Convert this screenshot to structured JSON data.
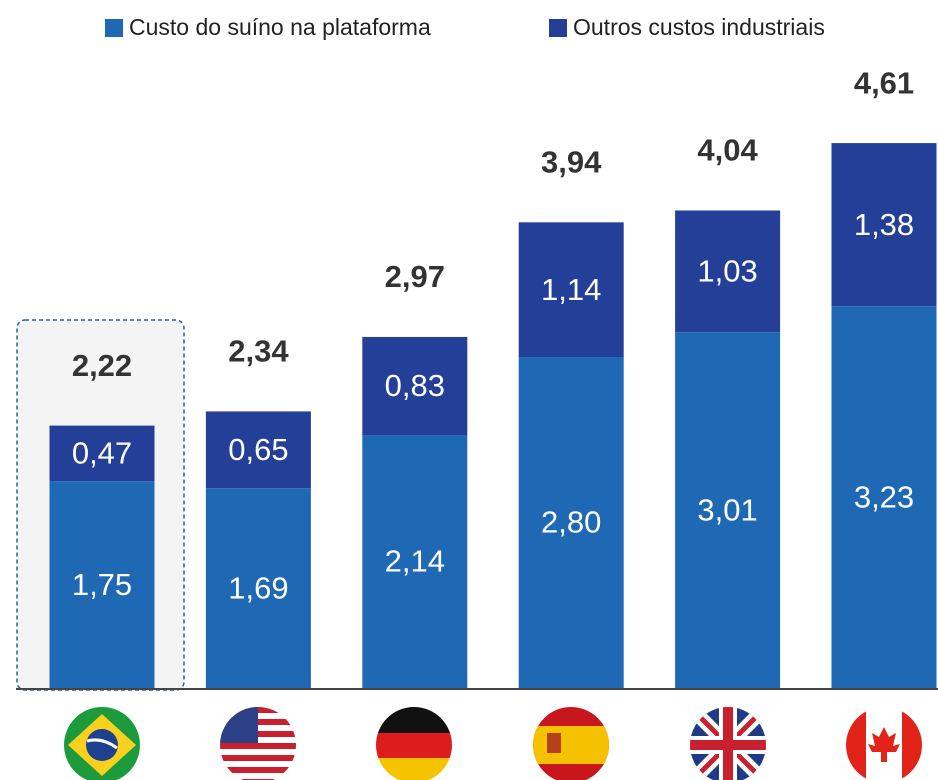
{
  "chart_data": {
    "type": "stacked_bar",
    "categories": [
      null,
      null,
      null,
      null,
      null,
      null
    ],
    "series": [
      {
        "name": "Custo do suíno na plataforma",
        "color": "#1f69b4",
        "values": [
          1.75,
          1.69,
          2.14,
          2.8,
          3.01,
          3.23
        ],
        "value_labels": [
          "1,75",
          "1,69",
          "2,14",
          "2,80",
          "3,01",
          "3,23"
        ]
      },
      {
        "name": "Outros custos industriais",
        "color": "#243f98",
        "values": [
          0.47,
          0.65,
          0.83,
          1.14,
          1.03,
          1.38
        ],
        "value_labels": [
          "0,47",
          "0,65",
          "0,83",
          "1,14",
          "1,03",
          "1,38"
        ]
      }
    ],
    "totals": [
      2.22,
      2.34,
      2.97,
      3.94,
      4.04,
      4.61
    ],
    "total_labels": [
      "2,22",
      "2,34",
      "2,97",
      "3,94",
      "4,04",
      "4,61"
    ]
  }
}
